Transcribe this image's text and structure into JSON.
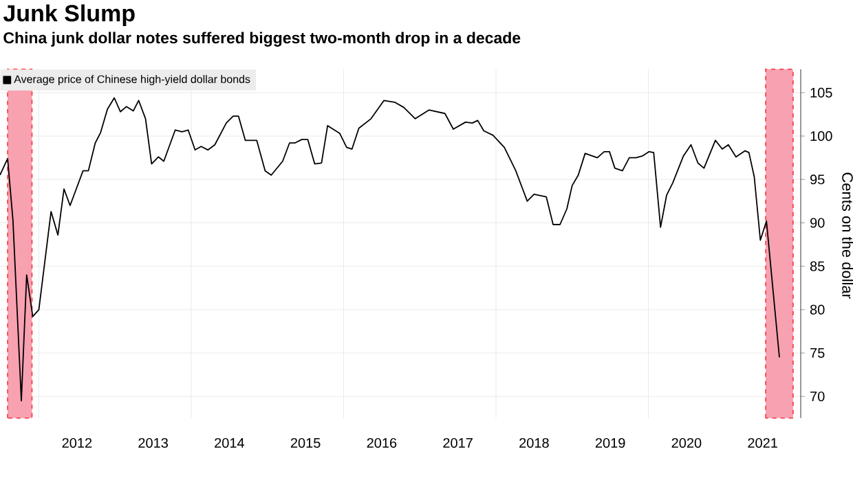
{
  "chart_data": {
    "type": "line",
    "title": "Junk Slump",
    "subtitle": "China junk dollar notes suffered biggest two-month drop in a decade",
    "ylabel": "Cents on the dollar",
    "x": [
      2011.49,
      2011.59,
      2011.66,
      2011.77,
      2011.84,
      2011.92,
      2012.0,
      2012.16,
      2012.25,
      2012.33,
      2012.41,
      2012.58,
      2012.65,
      2012.74,
      2012.81,
      2012.9,
      2012.99,
      2013.07,
      2013.15,
      2013.24,
      2013.31,
      2013.4,
      2013.48,
      2013.57,
      2013.64,
      2013.79,
      2013.88,
      2013.96,
      2014.05,
      2014.13,
      2014.22,
      2014.31,
      2014.46,
      2014.55,
      2014.62,
      2014.71,
      2014.86,
      2014.97,
      2015.05,
      2015.2,
      2015.29,
      2015.36,
      2015.45,
      2015.53,
      2015.62,
      2015.71,
      2015.79,
      2015.95,
      2016.04,
      2016.11,
      2016.2,
      2016.36,
      2016.53,
      2016.67,
      2016.79,
      2016.94,
      2017.12,
      2017.33,
      2017.44,
      2017.6,
      2017.69,
      2017.76,
      2017.84,
      2017.96,
      2018.11,
      2018.26,
      2018.41,
      2018.5,
      2018.66,
      2018.75,
      2018.84,
      2018.93,
      2019.0,
      2019.08,
      2019.17,
      2019.33,
      2019.42,
      2019.49,
      2019.56,
      2019.66,
      2019.75,
      2019.84,
      2019.92,
      2020.01,
      2020.07,
      2020.16,
      2020.24,
      2020.32,
      2020.46,
      2020.56,
      2020.65,
      2020.73,
      2020.88,
      2020.97,
      2021.05,
      2021.15,
      2021.27,
      2021.32,
      2021.39,
      2021.47,
      2021.55,
      2021.72
    ],
    "series": [
      {
        "name": "Average price of Chinese high-yield dollar bonds",
        "color": "#000000",
        "values": [
          95.5,
          97.4,
          90.3,
          69.5,
          84,
          79.2,
          80,
          91.3,
          88.6,
          93.9,
          92,
          96,
          96,
          99.2,
          100.4,
          103.1,
          104.4,
          102.8,
          103.4,
          102.9,
          104.1,
          102,
          96.8,
          97.6,
          97.1,
          100.7,
          100.5,
          100.7,
          98.4,
          98.8,
          98.4,
          99,
          101.5,
          102.3,
          102.3,
          99.5,
          99.5,
          96,
          95.5,
          97.1,
          99.2,
          99.2,
          99.6,
          99.6,
          96.8,
          96.9,
          101.2,
          100.3,
          98.7,
          98.5,
          100.9,
          102,
          104.1,
          103.9,
          103.3,
          102,
          103,
          102.6,
          100.8,
          101.6,
          101.5,
          101.8,
          100.6,
          100.1,
          98.7,
          96,
          92.5,
          93.3,
          93,
          89.8,
          89.8,
          91.6,
          94.3,
          95.5,
          98,
          97.5,
          98.2,
          98.2,
          96.3,
          96,
          97.5,
          97.5,
          97.7,
          98.2,
          98.1,
          89.5,
          93.2,
          94.6,
          97.7,
          99,
          96.9,
          96.3,
          99.5,
          98.5,
          99,
          97.6,
          98.3,
          98.1,
          95.3,
          88,
          90.2,
          74.5
        ]
      }
    ],
    "xlim": [
      2011.49,
      2022.0
    ],
    "ylim": [
      67.5,
      107.7
    ],
    "xticks": [
      {
        "value": 2012,
        "label": null
      },
      {
        "value": 2012.5,
        "label": "2012"
      },
      {
        "value": 2013.5,
        "label": "2013"
      },
      {
        "value": 2014,
        "label": null
      },
      {
        "value": 2014.5,
        "label": "2014"
      },
      {
        "value": 2015.5,
        "label": "2015"
      },
      {
        "value": 2016,
        "label": null
      },
      {
        "value": 2016.5,
        "label": "2016"
      },
      {
        "value": 2017.5,
        "label": "2017"
      },
      {
        "value": 2018,
        "label": null
      },
      {
        "value": 2018.5,
        "label": "2018"
      },
      {
        "value": 2019.5,
        "label": "2019"
      },
      {
        "value": 2020,
        "label": null
      },
      {
        "value": 2020.5,
        "label": "2020"
      },
      {
        "value": 2021.5,
        "label": "2021"
      }
    ],
    "yticks": [
      70,
      75,
      80,
      85,
      90,
      95,
      100,
      105
    ],
    "bands": [
      {
        "axis": "x",
        "from": 2011.59,
        "to": 2011.91,
        "color": "#f7a1b1"
      },
      {
        "axis": "x",
        "from": 2021.54,
        "to": 2021.9,
        "color": "#f7a1b1"
      }
    ],
    "grid": true,
    "legend": "top left",
    "marker": "none",
    "line_style": "solid"
  }
}
